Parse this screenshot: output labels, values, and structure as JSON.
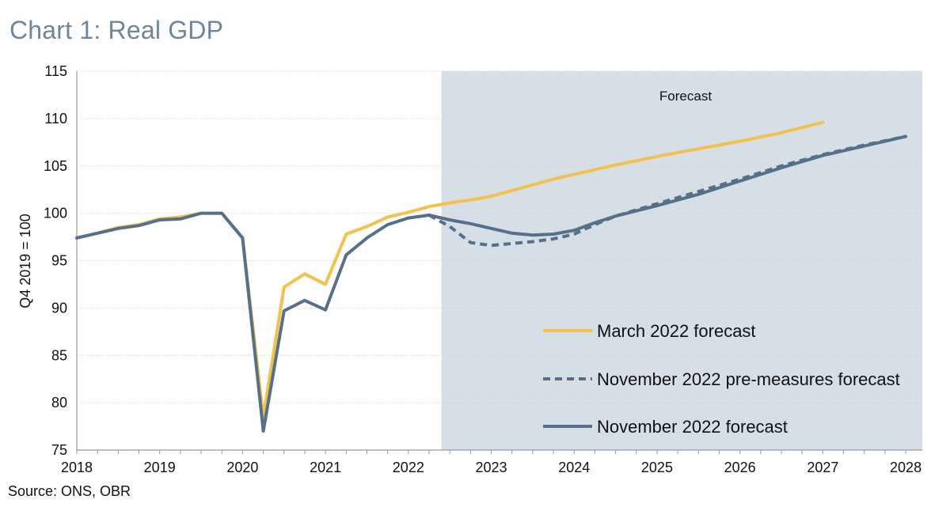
{
  "title": "Chart 1: Real GDP",
  "source": "Source: ONS, OBR",
  "chart_data": {
    "type": "line",
    "title": "Chart 1: Real GDP",
    "ylabel": "Q4 2019 = 100",
    "xlabel": "",
    "ylim": [
      75,
      115
    ],
    "xlim": [
      2018,
      2028
    ],
    "y_ticks": [
      "75",
      "80",
      "85",
      "90",
      "95",
      "100",
      "105",
      "110",
      "115"
    ],
    "x_ticks": [
      "2018",
      "2019",
      "2020",
      "2021",
      "2022",
      "2023",
      "2024",
      "2025",
      "2026",
      "2027",
      "2028"
    ],
    "grid": "horizontal",
    "forecast_region": {
      "label": "Forecast",
      "start": 2022.4,
      "end": 2028.2,
      "color": "#d6dfe6"
    },
    "legend_position": "bottom-right",
    "series": [
      {
        "name": "March 2022 forecast",
        "color": "#f2c14e",
        "style": "solid",
        "x": [
          2018.0,
          2018.25,
          2018.5,
          2018.75,
          2019.0,
          2019.25,
          2019.5,
          2019.75,
          2020.0,
          2020.25,
          2020.5,
          2020.75,
          2021.0,
          2021.25,
          2021.5,
          2021.75,
          2022.0,
          2022.25,
          2022.5,
          2022.75,
          2023.0,
          2023.25,
          2023.5,
          2023.75,
          2024.0,
          2024.5,
          2025.0,
          2025.5,
          2026.0,
          2026.5,
          2027.0
        ],
        "y": [
          97.4,
          97.9,
          98.5,
          98.8,
          99.4,
          99.6,
          100.0,
          100.0,
          97.4,
          78.5,
          92.2,
          93.6,
          92.5,
          97.8,
          98.6,
          99.6,
          100.1,
          100.7,
          101.1,
          101.4,
          101.8,
          102.4,
          103.0,
          103.6,
          104.1,
          105.1,
          106.0,
          106.8,
          107.6,
          108.5,
          109.6
        ]
      },
      {
        "name": "November 2022 pre-measures forecast",
        "color": "#56708a",
        "style": "dashed",
        "x": [
          2022.25,
          2022.5,
          2022.75,
          2023.0,
          2023.25,
          2023.5,
          2023.75,
          2024.0,
          2024.25,
          2024.5,
          2025.0,
          2025.5,
          2026.0,
          2026.5,
          2027.0,
          2027.5,
          2028.0
        ],
        "y": [
          99.8,
          98.6,
          96.9,
          96.6,
          96.8,
          97.0,
          97.3,
          97.8,
          98.8,
          99.7,
          101.0,
          102.3,
          103.6,
          105.0,
          106.2,
          107.2,
          108.1
        ]
      },
      {
        "name": "November 2022 forecast",
        "color": "#56708a",
        "style": "solid",
        "x": [
          2018.0,
          2018.25,
          2018.5,
          2018.75,
          2019.0,
          2019.25,
          2019.5,
          2019.75,
          2020.0,
          2020.25,
          2020.5,
          2020.75,
          2021.0,
          2021.25,
          2021.5,
          2021.75,
          2022.0,
          2022.25,
          2022.5,
          2022.75,
          2023.0,
          2023.25,
          2023.5,
          2023.75,
          2024.0,
          2024.25,
          2024.5,
          2025.0,
          2025.5,
          2026.0,
          2026.5,
          2027.0,
          2027.5,
          2028.0
        ],
        "y": [
          97.4,
          97.9,
          98.4,
          98.7,
          99.3,
          99.4,
          100.0,
          100.0,
          97.4,
          77.0,
          89.7,
          90.8,
          89.8,
          95.6,
          97.4,
          98.8,
          99.5,
          99.8,
          99.3,
          98.9,
          98.4,
          97.9,
          97.7,
          97.8,
          98.2,
          99.0,
          99.7,
          100.8,
          102.0,
          103.4,
          104.8,
          106.1,
          107.1,
          108.1
        ]
      }
    ]
  }
}
